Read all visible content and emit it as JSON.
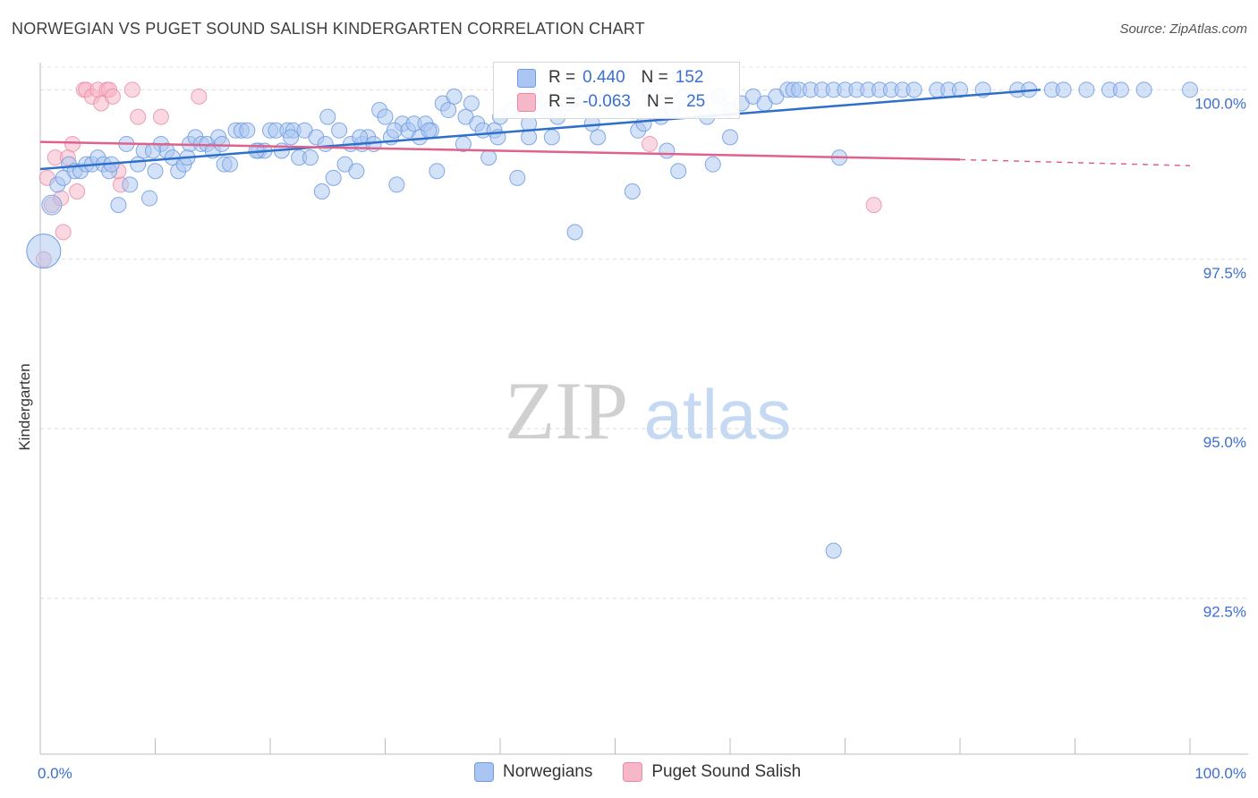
{
  "title": "NORWEGIAN VS PUGET SOUND SALISH KINDERGARTEN CORRELATION CHART",
  "source": "Source: ZipAtlas.com",
  "watermark_zip": "ZIP",
  "watermark_atlas": "atlas",
  "stats": {
    "row1": {
      "r_label": "R =",
      "r_value": "0.440",
      "n_label": "N =",
      "n_value": "152"
    },
    "row2": {
      "r_label": "R =",
      "r_value": "-0.063",
      "n_label": "N =",
      "n_value": "25"
    }
  },
  "legend": {
    "series1": "Norwegians",
    "series2": "Puget Sound Salish"
  },
  "colors": {
    "blue_fill": "#a9c6f2",
    "blue_stroke": "#6f9be0",
    "blue_line": "#2f6fcc",
    "pink_fill": "#f6b8c9",
    "pink_stroke": "#ea8aa7",
    "pink_line": "#e0628c"
  },
  "chart_data": {
    "type": "scatter",
    "xlabel": "",
    "ylabel": "Kindergarten",
    "xlim": [
      0,
      100
    ],
    "ylim": [
      90.2,
      100.4
    ],
    "x_tick_labels": [
      {
        "v": 0,
        "label": "0.0%"
      },
      {
        "v": 100,
        "label": "100.0%"
      }
    ],
    "y_tick_labels": [
      {
        "v": 100,
        "label": "100.0%"
      },
      {
        "v": 97.5,
        "label": "97.5%"
      },
      {
        "v": 95,
        "label": "95.0%"
      },
      {
        "v": 92.5,
        "label": "92.5%"
      }
    ],
    "series": [
      {
        "name": "Norwegians",
        "trend": {
          "x0": 0,
          "y0": 98.83,
          "x1": 87,
          "y1": 100.0
        },
        "points": [
          [
            1.0,
            98.3
          ],
          [
            1.5,
            98.6
          ],
          [
            2.0,
            98.7
          ],
          [
            2.5,
            98.9
          ],
          [
            3.0,
            98.8
          ],
          [
            3.5,
            98.8
          ],
          [
            4.0,
            98.9
          ],
          [
            4.5,
            98.9
          ],
          [
            5.0,
            99.0
          ],
          [
            5.5,
            98.9
          ],
          [
            6.0,
            98.8
          ],
          [
            6.8,
            98.3
          ],
          [
            7.5,
            99.2
          ],
          [
            7.8,
            98.6
          ],
          [
            8.5,
            98.9
          ],
          [
            9.0,
            99.1
          ],
          [
            9.5,
            98.4
          ],
          [
            10.0,
            98.8
          ],
          [
            10.5,
            99.2
          ],
          [
            11.0,
            99.1
          ],
          [
            11.5,
            99.0
          ],
          [
            12.0,
            98.8
          ],
          [
            12.5,
            98.9
          ],
          [
            13.0,
            99.2
          ],
          [
            13.5,
            99.3
          ],
          [
            14.0,
            99.2
          ],
          [
            14.5,
            99.2
          ],
          [
            15.0,
            99.1
          ],
          [
            15.5,
            99.3
          ],
          [
            16.0,
            98.9
          ],
          [
            16.5,
            98.9
          ],
          [
            17.0,
            99.4
          ],
          [
            17.5,
            99.4
          ],
          [
            18.0,
            99.4
          ],
          [
            19.0,
            99.1
          ],
          [
            19.5,
            99.1
          ],
          [
            20.0,
            99.4
          ],
          [
            20.5,
            99.4
          ],
          [
            21.0,
            99.1
          ],
          [
            21.5,
            99.4
          ],
          [
            22.0,
            99.4
          ],
          [
            22.5,
            99.0
          ],
          [
            23.0,
            99.4
          ],
          [
            23.5,
            99.0
          ],
          [
            24.0,
            99.3
          ],
          [
            24.5,
            98.5
          ],
          [
            25.0,
            99.6
          ],
          [
            25.5,
            98.7
          ],
          [
            26.0,
            99.4
          ],
          [
            26.5,
            98.9
          ],
          [
            27.0,
            99.2
          ],
          [
            27.5,
            98.8
          ],
          [
            28.0,
            99.2
          ],
          [
            28.5,
            99.3
          ],
          [
            29.0,
            99.2
          ],
          [
            29.5,
            99.7
          ],
          [
            30.0,
            99.6
          ],
          [
            30.5,
            99.3
          ],
          [
            31.0,
            98.6
          ],
          [
            31.5,
            99.5
          ],
          [
            32.0,
            99.4
          ],
          [
            32.5,
            99.5
          ],
          [
            33.0,
            99.3
          ],
          [
            33.5,
            99.5
          ],
          [
            34.0,
            99.4
          ],
          [
            34.5,
            98.8
          ],
          [
            35.0,
            99.8
          ],
          [
            35.5,
            99.7
          ],
          [
            36.0,
            99.9
          ],
          [
            37.0,
            99.6
          ],
          [
            37.5,
            99.8
          ],
          [
            38.0,
            99.5
          ],
          [
            38.5,
            99.4
          ],
          [
            39.0,
            99.0
          ],
          [
            39.5,
            99.4
          ],
          [
            40.0,
            99.6
          ],
          [
            41.0,
            99.7
          ],
          [
            41.5,
            98.7
          ],
          [
            42.0,
            99.8
          ],
          [
            42.5,
            99.5
          ],
          [
            43.0,
            99.9
          ],
          [
            44.0,
            99.7
          ],
          [
            45.0,
            99.6
          ],
          [
            46.0,
            99.8
          ],
          [
            47.0,
            99.9
          ],
          [
            48.0,
            99.5
          ],
          [
            49.0,
            99.8
          ],
          [
            50.0,
            99.7
          ],
          [
            51.0,
            99.8
          ],
          [
            52.0,
            99.4
          ],
          [
            53.0,
            99.9
          ],
          [
            54.0,
            99.6
          ],
          [
            55.0,
            99.7
          ],
          [
            55.5,
            98.8
          ],
          [
            56.0,
            99.9
          ],
          [
            57.0,
            99.8
          ],
          [
            58.0,
            99.6
          ],
          [
            59.0,
            99.9
          ],
          [
            60.0,
            99.7
          ],
          [
            61.0,
            99.8
          ],
          [
            62.0,
            99.9
          ],
          [
            63.0,
            99.8
          ],
          [
            64.0,
            99.9
          ],
          [
            65.0,
            100.0
          ],
          [
            65.5,
            100.0
          ],
          [
            66.0,
            100.0
          ],
          [
            67.0,
            100.0
          ],
          [
            68.0,
            100.0
          ],
          [
            69.0,
            100.0
          ],
          [
            70.0,
            100.0
          ],
          [
            71.0,
            100.0
          ],
          [
            72.0,
            100.0
          ],
          [
            73.0,
            100.0
          ],
          [
            74.0,
            100.0
          ],
          [
            75.0,
            100.0
          ],
          [
            76.0,
            100.0
          ],
          [
            78.0,
            100.0
          ],
          [
            79.0,
            100.0
          ],
          [
            80.0,
            100.0
          ],
          [
            82.0,
            100.0
          ],
          [
            85.0,
            100.0
          ],
          [
            86.0,
            100.0
          ],
          [
            88.0,
            100.0
          ],
          [
            89.0,
            100.0
          ],
          [
            91.0,
            100.0
          ],
          [
            93.0,
            100.0
          ],
          [
            94.0,
            100.0
          ],
          [
            96.0,
            100.0
          ],
          [
            100.0,
            100.0
          ],
          [
            46.5,
            97.9
          ],
          [
            51.5,
            98.5
          ],
          [
            58.5,
            98.9
          ],
          [
            60.0,
            99.3
          ],
          [
            69.5,
            99.0
          ],
          [
            54.5,
            99.1
          ],
          [
            52.5,
            99.5
          ],
          [
            48.5,
            99.3
          ],
          [
            44.5,
            99.3
          ],
          [
            42.5,
            99.3
          ],
          [
            39.8,
            99.3
          ],
          [
            36.8,
            99.2
          ],
          [
            33.8,
            99.4
          ],
          [
            30.8,
            99.4
          ],
          [
            27.8,
            99.3
          ],
          [
            24.8,
            99.2
          ],
          [
            21.8,
            99.3
          ],
          [
            18.8,
            99.1
          ],
          [
            15.8,
            99.2
          ],
          [
            12.8,
            99.0
          ],
          [
            9.8,
            99.1
          ],
          [
            6.2,
            98.9
          ],
          [
            69.0,
            93.2
          ]
        ]
      },
      {
        "name": "Puget Sound Salish",
        "trend": {
          "x0": 0,
          "y0": 99.23,
          "x1": 80,
          "y1": 98.97,
          "dash_x1": 100,
          "dash_y1": 98.88
        },
        "points": [
          [
            0.3,
            97.5
          ],
          [
            0.6,
            98.7
          ],
          [
            1.0,
            98.3
          ],
          [
            1.3,
            99.0
          ],
          [
            1.8,
            98.4
          ],
          [
            2.0,
            97.9
          ],
          [
            2.4,
            99.0
          ],
          [
            2.8,
            99.2
          ],
          [
            3.2,
            98.5
          ],
          [
            3.8,
            100.0
          ],
          [
            4.0,
            100.0
          ],
          [
            4.5,
            99.9
          ],
          [
            5.0,
            100.0
          ],
          [
            5.3,
            99.8
          ],
          [
            5.8,
            100.0
          ],
          [
            6.0,
            100.0
          ],
          [
            6.3,
            99.9
          ],
          [
            7.0,
            98.6
          ],
          [
            8.0,
            100.0
          ],
          [
            8.5,
            99.6
          ],
          [
            10.5,
            99.6
          ],
          [
            13.8,
            99.9
          ],
          [
            53.0,
            99.2
          ],
          [
            72.5,
            98.3
          ],
          [
            6.8,
            98.8
          ]
        ]
      }
    ]
  }
}
